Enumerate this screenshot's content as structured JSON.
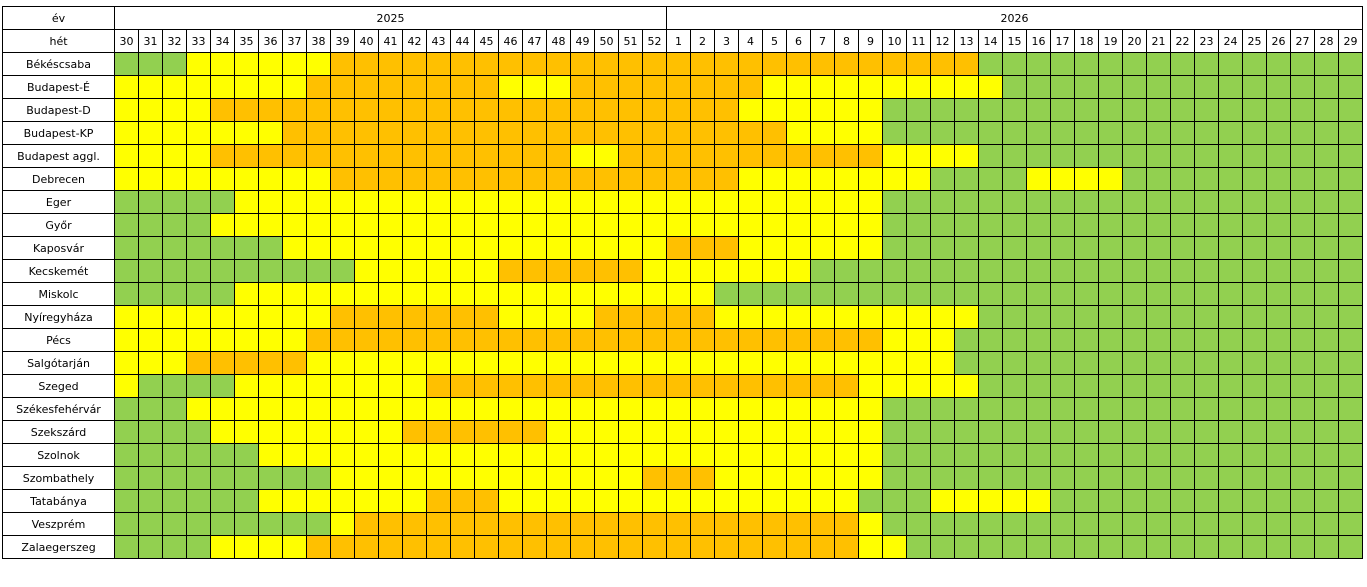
{
  "chart_data": {
    "type": "heatmap",
    "corner_year_label": "év",
    "corner_week_label": "hét",
    "years": [
      {
        "label": "2025",
        "span": 23
      },
      {
        "label": "2026",
        "span": 29
      }
    ],
    "weeks": [
      "30",
      "31",
      "32",
      "33",
      "34",
      "35",
      "36",
      "37",
      "38",
      "39",
      "40",
      "41",
      "42",
      "43",
      "44",
      "45",
      "46",
      "47",
      "48",
      "49",
      "50",
      "51",
      "52",
      "1",
      "2",
      "3",
      "4",
      "5",
      "6",
      "7",
      "8",
      "9",
      "10",
      "11",
      "12",
      "13",
      "14",
      "15",
      "16",
      "17",
      "18",
      "19",
      "20",
      "21",
      "22",
      "23",
      "24",
      "25",
      "26",
      "27",
      "28",
      "29"
    ],
    "palette": {
      "0": "#92d050",
      "1": "#ffff00",
      "2": "#ffc000"
    },
    "legend_levels": {
      "0": "green",
      "1": "yellow",
      "2": "orange"
    },
    "rows": [
      {
        "name": "Békéscsaba",
        "levels": "0001111112222222222222222222222222220000000000000000"
      },
      {
        "name": "Budapest-É",
        "levels": "1111111122222222111222222221111111111000000000000000"
      },
      {
        "name": "Budapest-D",
        "levels": "1111222222222222222222222211111100000000000000000000"
      },
      {
        "name": "Budapest-KP",
        "levels": "1111111222222222222222222222111100000000000000000000"
      },
      {
        "name": "Budapest aggl.",
        "levels": "1111222222222222222112222222222211110000000000000000"
      },
      {
        "name": "Debrecen",
        "levels": "1111111112222222222222222211111111000011110000000000"
      },
      {
        "name": "Eger",
        "levels": "0000011111111111111111111111111100000000000000000000"
      },
      {
        "name": "Győr",
        "levels": "0000111111111111111111111111111100000000000000000000"
      },
      {
        "name": "Kaposvár",
        "levels": "0000000111111111111111122211111100000000000000000000"
      },
      {
        "name": "Kecskemét",
        "levels": "0000000000111111222222111111100000000000000000000000"
      },
      {
        "name": "Miskolc",
        "levels": "0000011111111111111111111000000000000000000000000000"
      },
      {
        "name": "Nyíregyháza",
        "levels": "1111111112222222111122222111111111110000000000000000"
      },
      {
        "name": "Pécs",
        "levels": "1111111122222222222222222222222211100000000000000000"
      },
      {
        "name": "Salgótarján",
        "levels": "1112222211111111111111111111111111100000000000000000"
      },
      {
        "name": "Szeged",
        "levels": "1000011111111222222222222222222111110000000000000000"
      },
      {
        "name": "Székesfehérvár",
        "levels": "0001111111111111111111111111111100000000000000000000"
      },
      {
        "name": "Szekszárd",
        "levels": "0000111111112222221111111111111100000000000000000000"
      },
      {
        "name": "Szolnok",
        "levels": "0000001111111111111111111111111100000000000000000000"
      },
      {
        "name": "Szombathely",
        "levels": "0000000001111111111111222111111100000000000000000000"
      },
      {
        "name": "Tatabánya",
        "levels": "0000001111111222111111111111111000111110000000000000"
      },
      {
        "name": "Veszprém",
        "levels": "0000000001222222222222222222222100000000000000000000"
      },
      {
        "name": "Zalaegerszeg",
        "levels": "0000111122222222222222222222222110000000000000000000"
      }
    ]
  }
}
